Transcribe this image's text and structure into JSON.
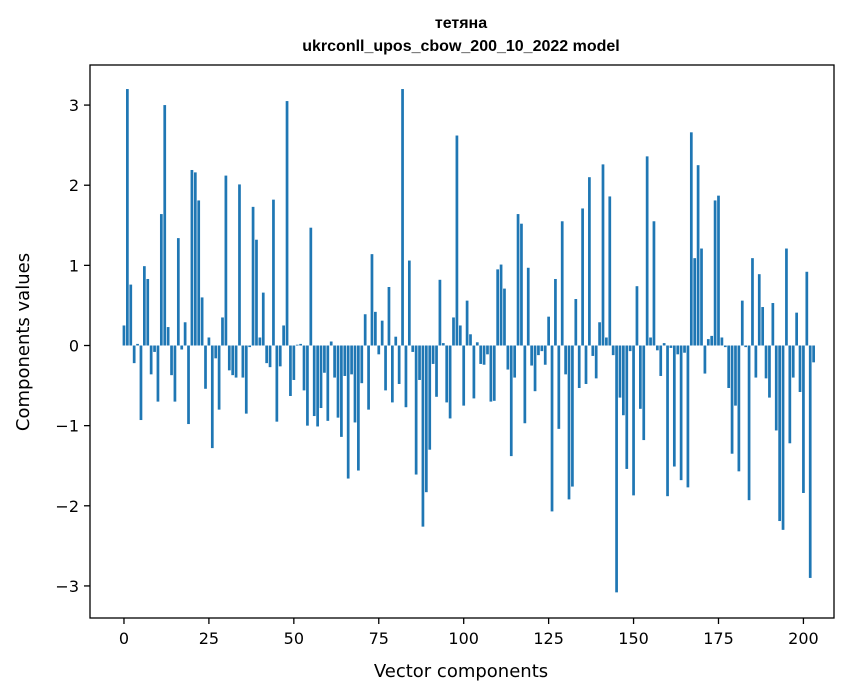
{
  "chart_data": {
    "type": "bar",
    "title_line1": "тетяна",
    "title_line2": "ukrconll_upos_cbow_200_10_2022 model",
    "xlabel": "Vector components",
    "ylabel": "Components values",
    "xlim": [
      -10,
      209
    ],
    "ylim": [
      -3.4,
      3.5
    ],
    "xticks": [
      0,
      25,
      50,
      75,
      100,
      125,
      150,
      175,
      200
    ],
    "yticks": [
      -3,
      -2,
      -1,
      0,
      1,
      2,
      3
    ],
    "ytick_labels": [
      "−3",
      "−2",
      "−1",
      "0",
      "1",
      "2",
      "3"
    ],
    "bar_color": "#1f77b4",
    "values": [
      0.25,
      3.2,
      0.76,
      -0.22,
      0.02,
      -0.93,
      0.99,
      0.83,
      -0.36,
      -0.08,
      -0.7,
      1.64,
      3.0,
      0.23,
      -0.37,
      -0.7,
      1.34,
      -0.05,
      0.29,
      -0.98,
      2.19,
      2.16,
      1.81,
      0.6,
      -0.54,
      0.1,
      -1.28,
      -0.16,
      -0.8,
      0.35,
      2.12,
      -0.31,
      -0.37,
      -0.4,
      2.01,
      -0.4,
      -0.85,
      -0.02,
      1.73,
      1.32,
      0.1,
      0.66,
      -0.22,
      -0.27,
      1.82,
      -0.95,
      -0.26,
      0.25,
      3.05,
      -0.63,
      -0.43,
      0.01,
      0.02,
      -0.56,
      -1.0,
      1.47,
      -0.88,
      -1.01,
      -0.78,
      -0.34,
      -0.94,
      0.05,
      -0.4,
      -0.9,
      -1.14,
      -0.38,
      -1.66,
      -0.36,
      -0.96,
      -1.56,
      -0.47,
      0.39,
      -0.8,
      1.14,
      0.42,
      -0.11,
      0.31,
      -0.56,
      0.73,
      -0.71,
      0.11,
      -0.48,
      3.2,
      -0.77,
      1.06,
      -0.08,
      -1.61,
      -0.43,
      -2.26,
      -1.83,
      -1.3,
      -0.23,
      -0.64,
      0.82,
      0.03,
      -0.71,
      -0.91,
      0.35,
      2.62,
      0.25,
      -0.75,
      0.56,
      0.14,
      -0.66,
      0.04,
      -0.23,
      -0.24,
      -0.11,
      -0.7,
      -0.69,
      0.95,
      1.01,
      0.71,
      -0.3,
      -1.38,
      -0.4,
      1.64,
      1.52,
      -0.97,
      0.97,
      -0.25,
      -0.57,
      -0.12,
      -0.07,
      -0.24,
      0.36,
      -2.07,
      0.83,
      -1.04,
      1.55,
      -0.36,
      -1.92,
      -1.76,
      0.58,
      -0.53,
      1.71,
      -0.48,
      2.1,
      -0.13,
      -0.41,
      0.29,
      2.26,
      0.1,
      1.86,
      -0.12,
      -3.08,
      -0.65,
      -0.87,
      -1.54,
      -0.07,
      -1.87,
      0.74,
      -0.79,
      -1.18,
      2.36,
      0.1,
      1.55,
      -0.06,
      -0.38,
      0.03,
      -1.88,
      -0.03,
      -1.51,
      -0.11,
      -1.68,
      -0.09,
      -1.77,
      2.66,
      1.09,
      2.25,
      1.21,
      -0.35,
      0.08,
      0.12,
      1.81,
      1.87,
      0.1,
      -0.02,
      -0.53,
      -1.35,
      -0.75,
      -1.57,
      0.56,
      -0.02,
      -1.93,
      1.09,
      -0.4,
      0.89,
      0.48,
      -0.41,
      -0.65,
      0.53,
      -1.06,
      -2.19,
      -2.3,
      1.21,
      -1.22,
      -0.4,
      0.41,
      -0.58,
      -1.84,
      0.92,
      -2.9,
      -0.21
    ]
  }
}
